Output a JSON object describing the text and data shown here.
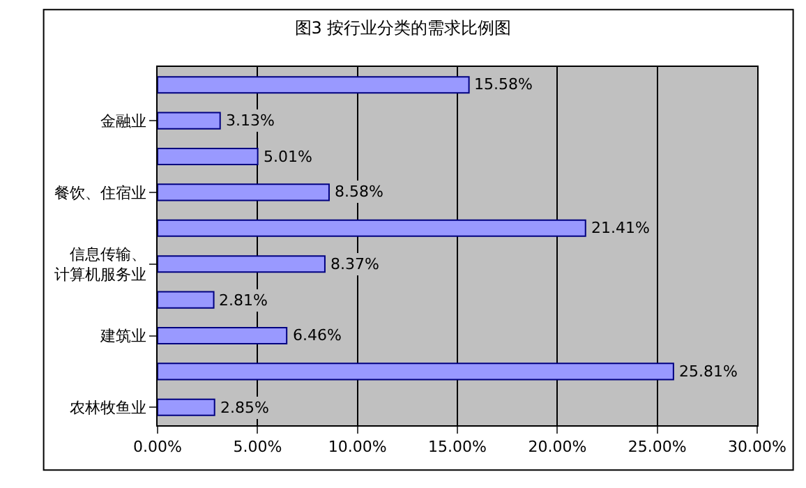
{
  "chart_data": {
    "type": "bar",
    "orientation": "horizontal",
    "title": "图3 按行业分类的需求比例图",
    "categories": [
      null,
      "金融业",
      null,
      "餐饮、住宿业",
      null,
      "信息传输、计算机服务业",
      null,
      "建筑业",
      null,
      "农林牧鱼业"
    ],
    "values": [
      15.58,
      3.13,
      5.01,
      8.58,
      21.41,
      8.37,
      2.81,
      6.46,
      25.81,
      2.85
    ],
    "value_labels": [
      "15.58%",
      "3.13%",
      "5.01%",
      "8.58%",
      "21.41%",
      "8.37%",
      "2.81%",
      "6.46%",
      "25.81%",
      "2.85%"
    ],
    "color": "#9999ff",
    "xlim": [
      0,
      30
    ],
    "xticks": [
      {
        "value": 0,
        "label": "0.00%"
      },
      {
        "value": 5,
        "label": "5.00%"
      },
      {
        "value": 10,
        "label": "10.00%"
      },
      {
        "value": 15,
        "label": "15.00%"
      },
      {
        "value": 20,
        "label": "20.00%"
      },
      {
        "value": 25,
        "label": "25.00%"
      },
      {
        "value": 30,
        "label": "30.00%"
      }
    ],
    "grid": "x",
    "legend": false
  }
}
